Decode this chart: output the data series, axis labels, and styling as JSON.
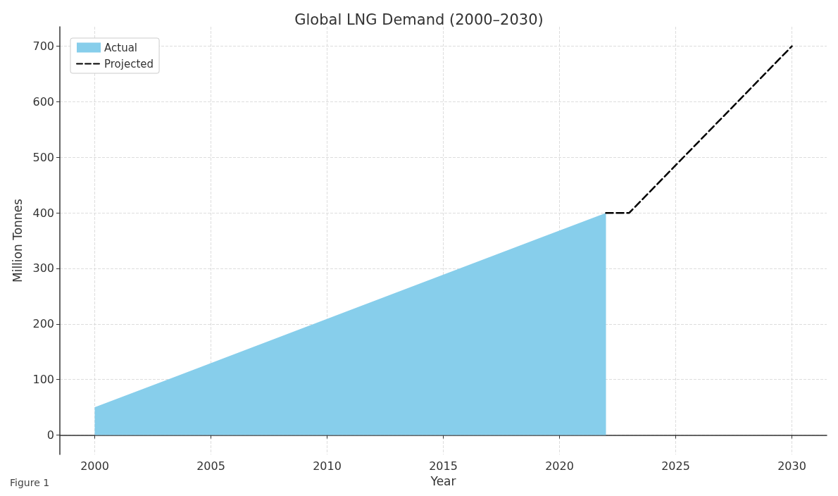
{
  "chart_data": {
    "type": "area",
    "title": "Global LNG Demand (2000–2030)",
    "xlabel": "Year",
    "ylabel": "Million Tonnes",
    "series": [
      {
        "name": "Actual",
        "color": "#87ceeb",
        "x": [
          2000,
          2022
        ],
        "values": [
          50,
          400
        ]
      },
      {
        "name": "Projected",
        "type": "line",
        "color": "#000000",
        "line_style": "dashed",
        "x": [
          2022,
          2023,
          2030
        ],
        "values": [
          400,
          400,
          700
        ]
      }
    ],
    "xlim": [
      1998.5,
      2031.5
    ],
    "xticks": [
      2000,
      2005,
      2010,
      2015,
      2020,
      2025,
      2030
    ],
    "ylim": [
      -35,
      735
    ],
    "yticks": [
      0,
      100,
      200,
      300,
      400,
      500,
      600,
      700
    ],
    "grid": true,
    "legend": "top left",
    "marker": "none",
    "annotations": [
      "Figure 1"
    ]
  }
}
